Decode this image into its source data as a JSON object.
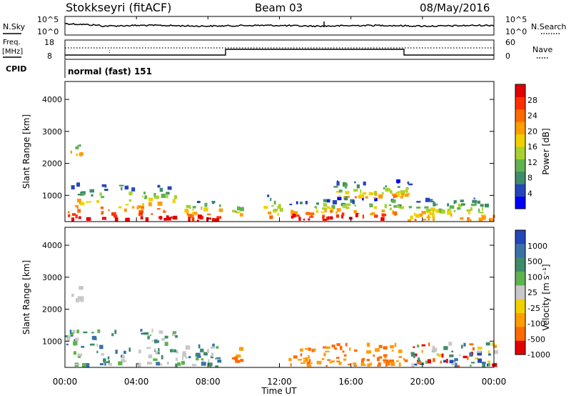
{
  "header": {
    "station": "Stokkseyri (fitACF)",
    "beam": "Beam 03",
    "date": "08/May/2016"
  },
  "noise_panel": {
    "left_label": "N.Sky",
    "right_label": "N.Search",
    "left_ticks": [
      "10^5",
      "10^0"
    ],
    "right_ticks": [
      "10^5",
      "10^0"
    ]
  },
  "freq_panel": {
    "left_label_1": "Freq.",
    "left_label_2": "[MHz]",
    "left_ticks": [
      "18",
      "8"
    ],
    "right_label": "Nave",
    "right_ticks": [
      "60",
      "0"
    ]
  },
  "cpid_panel": {
    "label": "CPID",
    "mode": "normal (fast) 151"
  },
  "chart_data": [
    {
      "type": "heatmap",
      "name": "power",
      "ylabel": "Slant Range [km]",
      "yticks": [
        1000,
        2000,
        3000,
        4000
      ],
      "ylim": [
        180,
        4560
      ],
      "xlim": [
        0,
        24
      ],
      "colorbar": {
        "label": "Power [dB]",
        "ticks": [
          "4",
          "8",
          "12",
          "16",
          "20",
          "24",
          "28"
        ],
        "colors": [
          "#0000ff",
          "#2546b8",
          "#3f8c6a",
          "#5fb24f",
          "#a8d12f",
          "#f0d000",
          "#ff9d00",
          "#ff6a00",
          "#ff3000",
          "#e30000"
        ]
      },
      "echo_regions": [
        {
          "t0": 0.0,
          "t1": 6.3,
          "r0": 180,
          "r1": 1300,
          "level": "high"
        },
        {
          "t0": 0.3,
          "t1": 0.9,
          "r0": 2200,
          "r1": 2700,
          "level": "medium"
        },
        {
          "t0": 6.5,
          "t1": 8.7,
          "r0": 180,
          "r1": 800,
          "level": "high"
        },
        {
          "t0": 9.3,
          "t1": 9.8,
          "r0": 300,
          "r1": 700,
          "level": "medium"
        },
        {
          "t0": 11.1,
          "t1": 12.1,
          "r0": 250,
          "r1": 1000,
          "level": "medium"
        },
        {
          "t0": 12.5,
          "t1": 14.1,
          "r0": 200,
          "r1": 750,
          "level": "high"
        },
        {
          "t0": 14.3,
          "t1": 19.1,
          "r0": 200,
          "r1": 850,
          "level": "high"
        },
        {
          "t0": 15.0,
          "t1": 19.3,
          "r0": 900,
          "r1": 1400,
          "level": "medium"
        },
        {
          "t0": 19.1,
          "t1": 24.0,
          "r0": 180,
          "r1": 900,
          "level": "medium"
        }
      ]
    },
    {
      "type": "heatmap",
      "name": "velocity",
      "ylabel": "Slant Range [km]",
      "yticks": [
        1000,
        2000,
        3000,
        4000
      ],
      "ylim": [
        180,
        4560
      ],
      "xlim": [
        0,
        24
      ],
      "colorbar": {
        "label": "Velocity [m s⁻¹]",
        "ticks": [
          "1000",
          "500",
          "100",
          "25",
          "-25",
          "-100",
          "-500",
          "-1000"
        ],
        "colors": [
          "#2546b8",
          "#3a72a8",
          "#3f8c6a",
          "#5fb24f",
          "#c8c8c8",
          "#f0d000",
          "#ff9d00",
          "#ff6a00",
          "#e30000"
        ]
      },
      "echo_regions": [
        {
          "t0": 0.0,
          "t1": 6.3,
          "r0": 180,
          "r1": 1300,
          "level": "positive"
        },
        {
          "t0": 0.3,
          "t1": 0.9,
          "r0": 2200,
          "r1": 2700,
          "level": "neutral"
        },
        {
          "t0": 6.5,
          "t1": 8.7,
          "r0": 180,
          "r1": 800,
          "level": "positive"
        },
        {
          "t0": 9.3,
          "t1": 9.8,
          "r0": 300,
          "r1": 700,
          "level": "negative"
        },
        {
          "t0": 12.5,
          "t1": 14.1,
          "r0": 200,
          "r1": 750,
          "level": "negative"
        },
        {
          "t0": 14.3,
          "t1": 19.1,
          "r0": 200,
          "r1": 850,
          "level": "negative"
        },
        {
          "t0": 19.1,
          "t1": 24.0,
          "r0": 180,
          "r1": 900,
          "level": "mixed"
        }
      ]
    }
  ],
  "xaxis": {
    "ticks": [
      "00:00",
      "04:00",
      "08:00",
      "12:00",
      "16:00",
      "20:00",
      "00:00"
    ],
    "label": "Time UT"
  }
}
